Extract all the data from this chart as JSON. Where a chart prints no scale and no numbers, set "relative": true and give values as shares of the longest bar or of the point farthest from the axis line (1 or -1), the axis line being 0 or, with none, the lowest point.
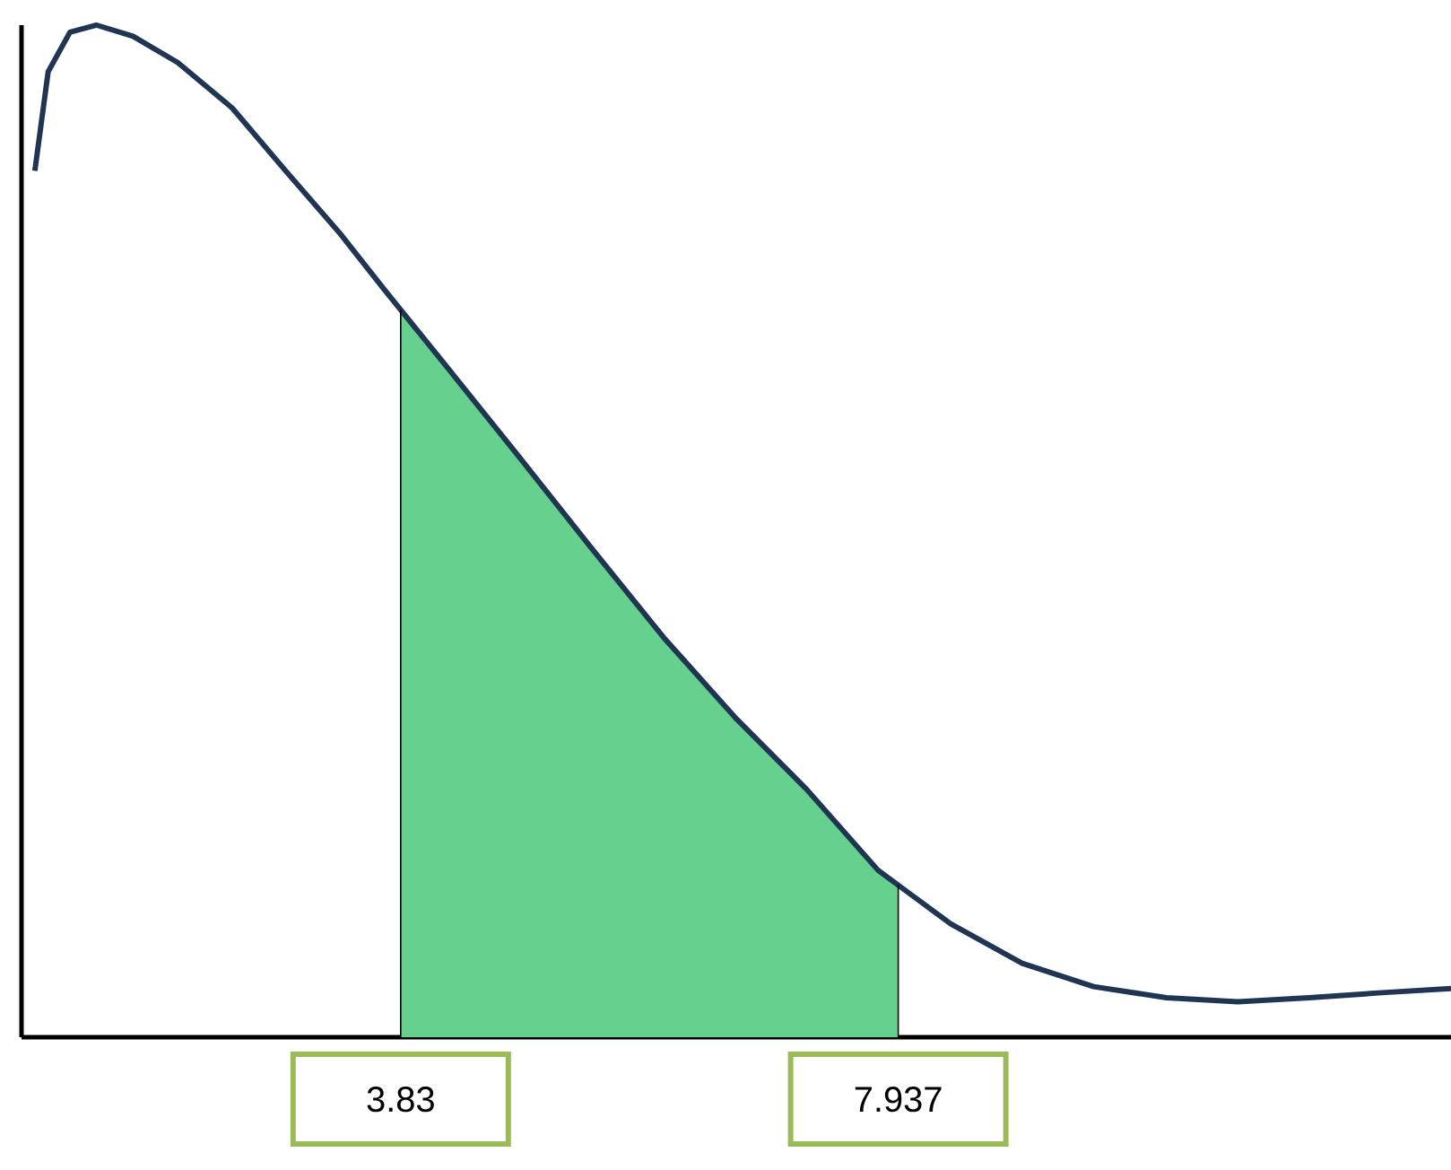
{
  "chart_data": {
    "type": "line",
    "relative": true,
    "xlim": [
      0.7,
      12.5
    ],
    "xticks": [
      3.83,
      7.937
    ],
    "series": [
      {
        "color": "#1f3552",
        "x": [
          0.81,
          0.92,
          1.1,
          1.32,
          1.62,
          1.99,
          2.44,
          2.88,
          3.33,
          3.7,
          4.22,
          4.81,
          5.4,
          6.0,
          6.59,
          7.18,
          7.77,
          8.37,
          8.96,
          9.55,
          10.15,
          10.74,
          11.33,
          11.93,
          12.5
        ],
        "values": [
          0.856,
          0.954,
          0.993,
          1.0,
          0.989,
          0.963,
          0.918,
          0.856,
          0.794,
          0.738,
          0.661,
          0.573,
          0.484,
          0.395,
          0.316,
          0.245,
          0.165,
          0.112,
          0.073,
          0.05,
          0.039,
          0.035,
          0.039,
          0.044,
          0.048
        ]
      },
      {
        "type": "area",
        "color": "#66d08f",
        "x": [
          3.83,
          4.22,
          4.81,
          5.4,
          6.0,
          6.59,
          7.18,
          7.77,
          7.937
        ],
        "values": [
          0.72,
          0.661,
          0.573,
          0.484,
          0.395,
          0.316,
          0.245,
          0.165,
          0.15
        ]
      }
    ],
    "ref_lines": [
      {
        "axis": "x",
        "value": 3.83,
        "color": "#000000"
      },
      {
        "axis": "x",
        "value": 7.937,
        "color": "#000000"
      }
    ]
  }
}
